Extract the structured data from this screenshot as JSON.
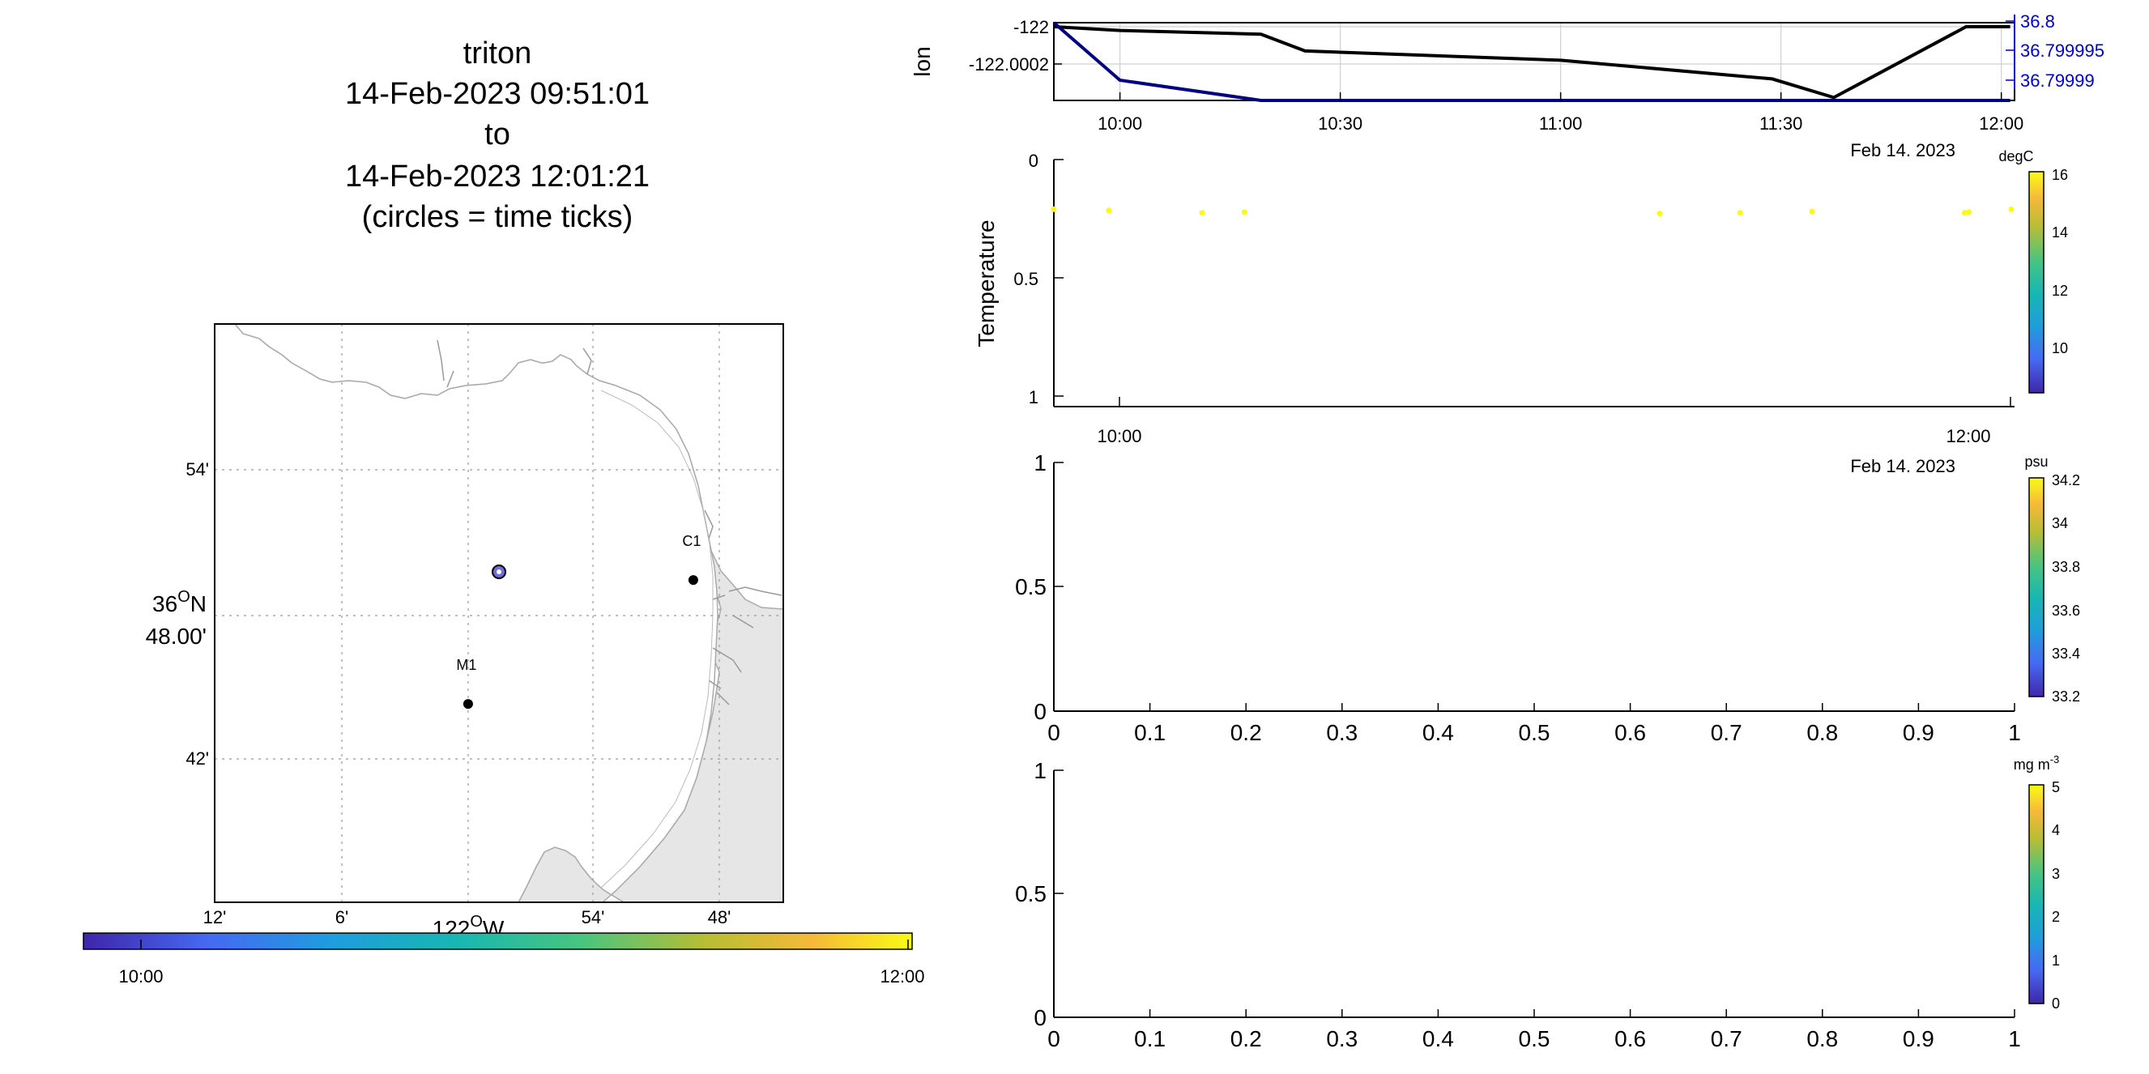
{
  "title": {
    "lines": [
      "triton",
      "14-Feb-2023 09:51:01",
      "to",
      "14-Feb-2023 12:01:21",
      "(circles = time ticks)"
    ]
  },
  "map": {
    "lat_ticks": [
      "54'",
      "42'"
    ],
    "lat_center_deg": "36",
    "lat_center_unit": "O",
    "lat_center_hem": "N",
    "lat_center_min": "48.00'",
    "lon_ticks": [
      "12'",
      "6'",
      "54'",
      "48'"
    ],
    "lon_center_deg": "122",
    "lon_center_unit": "O",
    "lon_center_hem": "W",
    "stations": [
      {
        "name": "C1",
        "lon_deg": -121.8633,
        "lat_deg": 36.7967
      },
      {
        "name": "M1",
        "lon_deg": -122.0217,
        "lat_deg": 36.7467
      }
    ],
    "track_position": {
      "lon_deg": -122.0,
      "lat_deg": 36.8
    },
    "land_color": "#e6e6e6",
    "coast_color": "#aaaaaa"
  },
  "time_colorbar": {
    "labels": [
      "10:00",
      "12:00"
    ],
    "colormap": [
      "#3e26a8",
      "#4669f2",
      "#1f9dde",
      "#18b6b3",
      "#48c580",
      "#b7bd35",
      "#f6b93a",
      "#f9fb15"
    ]
  },
  "chart_data": [
    {
      "type": "line",
      "ylabel": "lon",
      "xticks": [
        "10:00",
        "10:30",
        "11:00",
        "11:30",
        "12:00"
      ],
      "xdate": "Feb 14. 2023",
      "yticks_left": [
        "-122",
        "-122.0002"
      ],
      "yticks_right": [
        "36.8",
        "36.799995",
        "36.79999"
      ],
      "x_hours": [
        9.85,
        10.0,
        10.32,
        10.42,
        11.0,
        11.48,
        11.62,
        11.92,
        12.02
      ],
      "series": [
        {
          "axis": "left",
          "color": "#000000",
          "values": [
            -122.0,
            -122.00002,
            -122.00004,
            -122.00013,
            -122.00018,
            -122.00028,
            -122.00038,
            -122.0,
            -122.0
          ]
        },
        {
          "axis": "right",
          "color": "#000080",
          "values": [
            36.8,
            36.79999,
            36.799985,
            36.79994,
            36.79992,
            36.7999,
            36.799885,
            36.79986,
            36.79986
          ]
        }
      ]
    },
    {
      "type": "scatter",
      "ylabel": "Temperature",
      "yticks": [
        "0",
        "0.5",
        "1"
      ],
      "ylim": [
        1,
        0
      ],
      "xticks": [
        "10:00",
        "12:00"
      ],
      "xdate": "Feb 14. 2023",
      "x_hours": [
        9.85,
        9.98,
        10.2,
        10.3,
        11.28,
        11.47,
        11.64,
        12.0,
        12.01,
        12.11
      ],
      "y": [
        0.21,
        0.215,
        0.225,
        0.222,
        0.228,
        0.225,
        0.22,
        0.225,
        0.222,
        0.21
      ],
      "point_color": "#f9fb15",
      "colorbar": {
        "unit": "degC",
        "ticks": [
          "16",
          "14",
          "12",
          "10"
        ],
        "range": [
          8.5,
          16
        ]
      }
    },
    {
      "type": "scatter",
      "ylabel": "",
      "yticks": [
        "1",
        "0.5",
        "0"
      ],
      "xticks": [
        "0",
        "0.1",
        "0.2",
        "0.3",
        "0.4",
        "0.5",
        "0.6",
        "0.7",
        "0.8",
        "0.9",
        "1"
      ],
      "xlim": [
        0,
        1
      ],
      "ylim": [
        0,
        1
      ],
      "clipped_date": "Feb 14. 2023",
      "colorbar": {
        "unit": "psu",
        "ticks": [
          "34.2",
          "34",
          "33.8",
          "33.6",
          "33.4",
          "33.2"
        ],
        "range": [
          33.2,
          34.2
        ]
      }
    },
    {
      "type": "scatter",
      "ylabel": "",
      "yticks": [
        "1",
        "0.5",
        "0"
      ],
      "xticks": [
        "0",
        "0.1",
        "0.2",
        "0.3",
        "0.4",
        "0.5",
        "0.6",
        "0.7",
        "0.8",
        "0.9",
        "1"
      ],
      "xlim": [
        0,
        1
      ],
      "ylim": [
        0,
        1
      ],
      "colorbar": {
        "unit_base": "mg m",
        "unit_sup": "-3",
        "ticks": [
          "5",
          "4",
          "3",
          "2",
          "1",
          "0"
        ],
        "range": [
          0,
          5
        ]
      }
    }
  ]
}
